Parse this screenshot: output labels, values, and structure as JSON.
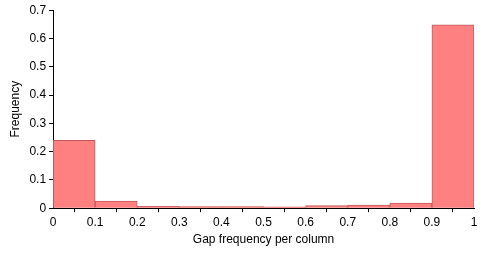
{
  "chart_data": {
    "type": "histogram",
    "x_label": "Gap frequency per column",
    "y_label": "Frequency",
    "bins": [
      0,
      0.1,
      0.2,
      0.3,
      0.4,
      0.5,
      0.6,
      0.7,
      0.8,
      0.9,
      1
    ],
    "values": [
      0.24,
      0.025,
      0.007,
      0.006,
      0.006,
      0.005,
      0.009,
      0.011,
      0.018,
      0.648
    ],
    "color": "#ff8080",
    "xlim": [
      0,
      1
    ],
    "xticks": [
      0,
      0.1,
      0.2,
      0.3,
      0.4,
      0.5,
      0.6,
      0.7,
      0.8,
      0.9,
      1
    ],
    "ylim": [
      0,
      0.7
    ],
    "yticks": [
      0,
      0.1,
      0.2,
      0.3,
      0.4,
      0.5,
      0.6,
      0.7
    ],
    "grid": false
  }
}
